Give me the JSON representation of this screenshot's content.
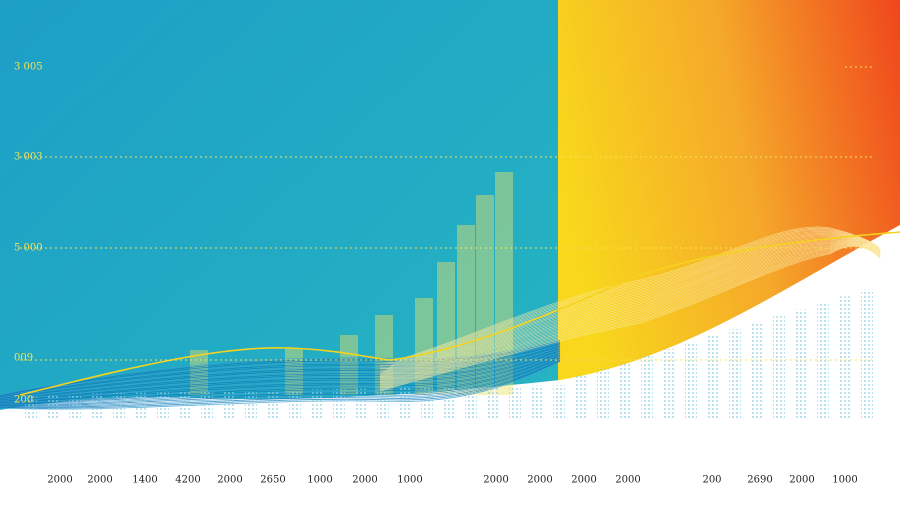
{
  "y_labels": [
    "3 005",
    "3 003",
    "5 000",
    "009",
    "200"
  ],
  "x_labels": [
    "2000",
    "2000",
    "1400",
    "4200",
    "2000",
    "2650",
    "1000",
    "2000",
    "1000",
    "2000",
    "2000",
    "2000",
    "2000",
    "200",
    "2690",
    "2000",
    "1000"
  ]
}
